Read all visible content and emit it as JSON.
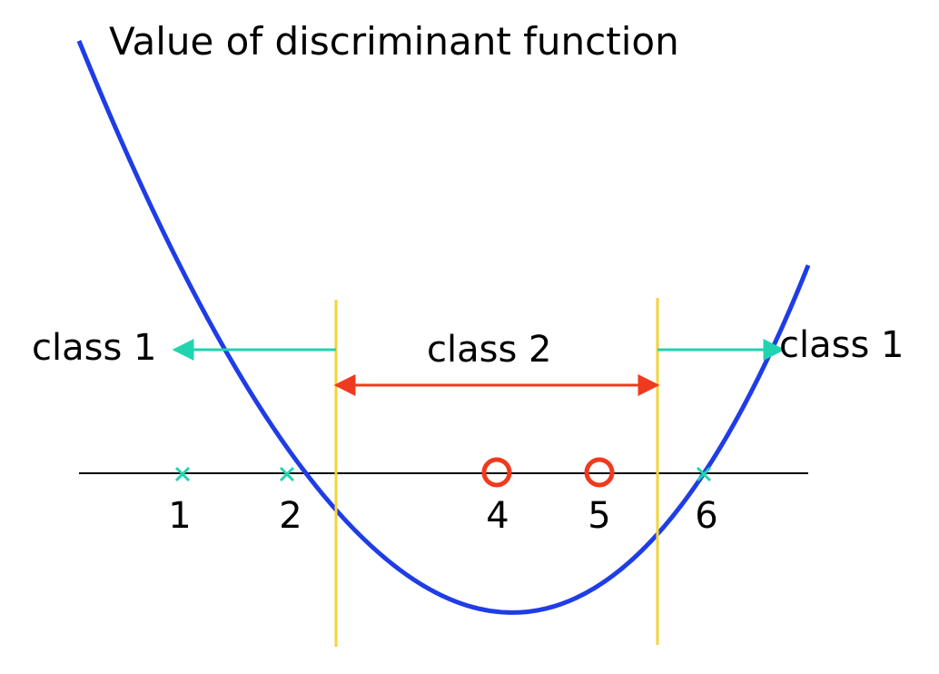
{
  "title": "Value of discriminant function",
  "regions": {
    "left": "class 1",
    "middle": "class 2",
    "right": "class 1"
  },
  "points": [
    {
      "label": "1",
      "class": "class 1",
      "marker": "cross"
    },
    {
      "label": "2",
      "class": "class 1",
      "marker": "cross"
    },
    {
      "label": "4",
      "class": "class 2",
      "marker": "circle"
    },
    {
      "label": "5",
      "class": "class 2",
      "marker": "circle"
    },
    {
      "label": "6",
      "class": "class 1",
      "marker": "cross"
    }
  ],
  "colors": {
    "curve": "#1f3de6",
    "boundary": "#f5d33a",
    "class1": "#22d3b0",
    "class2": "#f03a1e",
    "axis": "#000000"
  }
}
